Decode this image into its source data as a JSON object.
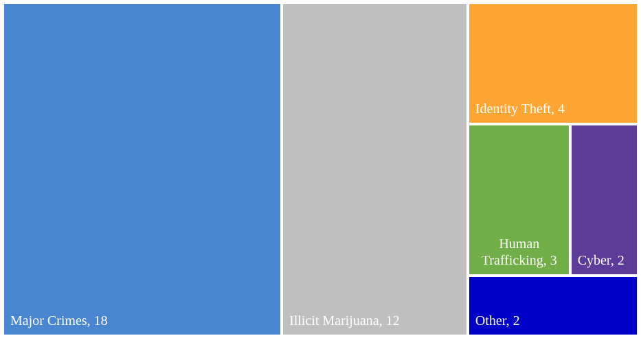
{
  "chart_data": {
    "type": "treemap",
    "values": [
      18,
      12,
      4,
      3,
      2,
      2
    ],
    "value_labels": [
      "Major Crimes, 18",
      "Illicit Marijuana, 12",
      "Identity Theft, 4",
      "Human Trafficking, 3",
      "Cyber, 2",
      "Other, 2"
    ],
    "colors": [
      "#4a86d0",
      "#bfbfbf",
      "#ffa533",
      "#72ae48",
      "#5c3c99",
      "#0000c8"
    ]
  }
}
